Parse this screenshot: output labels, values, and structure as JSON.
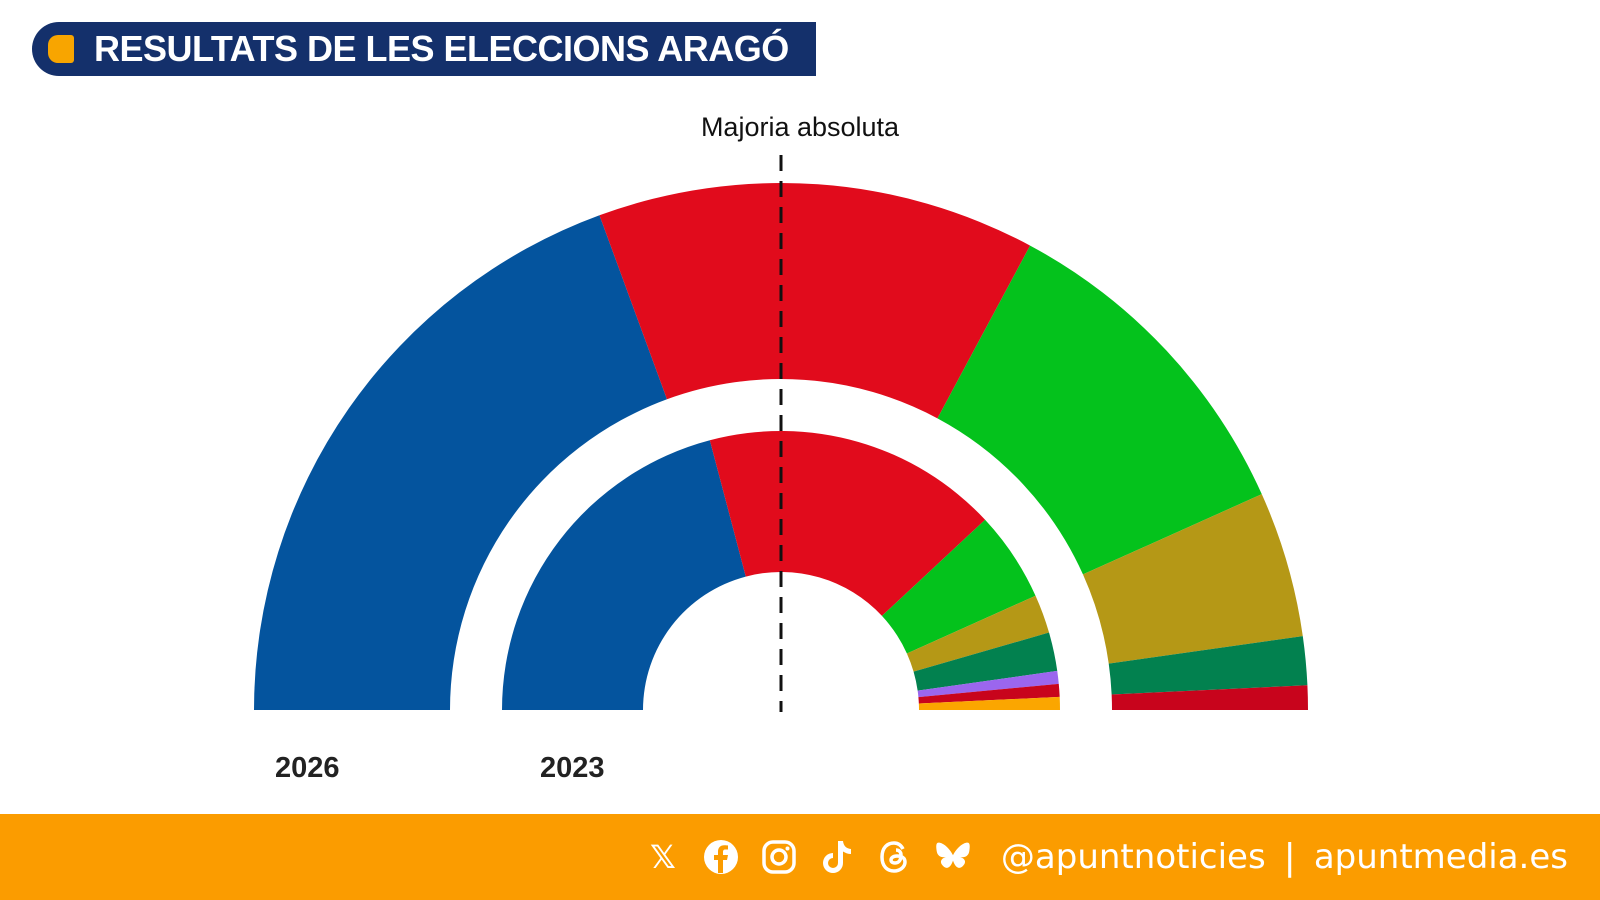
{
  "header": {
    "title": "RESULTATS DE LES ELECCIONS ARAGÓ",
    "accent": "#f8a500",
    "bar_color": "#14306b"
  },
  "chart_data": {
    "type": "pie",
    "subtype": "hemicycle",
    "majority_label": "Majoria absoluta",
    "total_seats": 67,
    "series": [
      {
        "name": "2026",
        "ring": "outer",
        "values": [
          26,
          18,
          14,
          6,
          2,
          1
        ],
        "colors": [
          "#04549e",
          "#e10b1c",
          "#04c21c",
          "#b59816",
          "#02814f",
          "#c8041c"
        ]
      },
      {
        "name": "2023",
        "ring": "inner",
        "values": [
          28,
          23,
          7,
          3,
          3,
          1,
          1,
          1
        ],
        "colors": [
          "#04549e",
          "#e10b1c",
          "#04c21c",
          "#b59816",
          "#02814f",
          "#9b66ee",
          "#c8041c",
          "#fba600"
        ]
      }
    ]
  },
  "footer": {
    "background": "#fb9c00",
    "icons": [
      "x-icon",
      "facebook-icon",
      "instagram-icon",
      "tiktok-icon",
      "threads-icon",
      "bluesky-icon"
    ],
    "handle": "@apuntnoticies",
    "separator": "|",
    "site": "apuntmedia.es"
  }
}
